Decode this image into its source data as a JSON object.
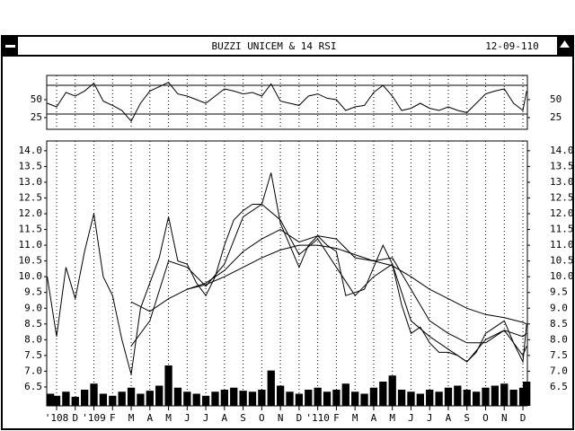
{
  "window": {
    "title": "BUZZI UNICEM & 14 RSI",
    "date": "12-09-110"
  },
  "chart_data": [
    {
      "type": "line",
      "name": "RSI",
      "x": [
        -0.5,
        0,
        0.5,
        1,
        1.5,
        2,
        2.5,
        3,
        3.5,
        4,
        4.5,
        5,
        5.5,
        6,
        6.5,
        7,
        7.5,
        8,
        8.5,
        9,
        9.5,
        10,
        10.5,
        11,
        11.5,
        12,
        12.5,
        13,
        13.5,
        14,
        14.5,
        15,
        15.5,
        16,
        16.5,
        17,
        17.5,
        18,
        18.5,
        19,
        19.5,
        20,
        20.5,
        21,
        21.5,
        22,
        22.5,
        23,
        23.5,
        24,
        24.5,
        25,
        25.2
      ],
      "values": [
        45,
        40,
        60,
        55,
        62,
        73,
        48,
        42,
        35,
        20,
        45,
        62,
        68,
        74,
        58,
        55,
        50,
        45,
        55,
        65,
        62,
        58,
        60,
        55,
        72,
        48,
        45,
        42,
        55,
        58,
        52,
        50,
        35,
        40,
        42,
        60,
        70,
        55,
        35,
        38,
        45,
        38,
        35,
        40,
        35,
        32,
        45,
        58,
        62,
        65,
        45,
        35,
        62
      ],
      "color": "#000000",
      "xlim": [
        -0.53,
        25.24
      ],
      "ylim": [
        8.75,
        83.75
      ],
      "yticks": [
        25,
        50
      ],
      "hlines": [
        30,
        70
      ]
    },
    {
      "type": "line",
      "name": "Price",
      "xlim": [
        -0.53,
        25.24
      ],
      "ylim": [
        5.9,
        14.31
      ],
      "yticks": [
        {
          "value": 6.5,
          "label": "6.5"
        },
        {
          "value": 7,
          "label": "7.0"
        },
        {
          "value": 7.5,
          "label": "7.5"
        },
        {
          "value": 8,
          "label": "8.0"
        },
        {
          "value": 8.5,
          "label": "8.5"
        },
        {
          "value": 9,
          "label": "9.0"
        },
        {
          "value": 9.5,
          "label": "9.5"
        },
        {
          "value": 10,
          "label": "10.0"
        },
        {
          "value": 10.5,
          "label": "10.5"
        },
        {
          "value": 11,
          "label": "11.0"
        },
        {
          "value": 11.5,
          "label": "11.5"
        },
        {
          "value": 12,
          "label": "12.0"
        },
        {
          "value": 12.5,
          "label": "12.5"
        },
        {
          "value": 13,
          "label": "13.0"
        },
        {
          "value": 13.5,
          "label": "13.5"
        },
        {
          "value": 14,
          "label": "14.0"
        }
      ],
      "xticks": [
        {
          "value": 0,
          "label": "'108"
        },
        {
          "value": 1,
          "label": "D"
        },
        {
          "value": 2,
          "label": "'109"
        },
        {
          "value": 3,
          "label": "F"
        },
        {
          "value": 4,
          "label": "M"
        },
        {
          "value": 5,
          "label": "A"
        },
        {
          "value": 6,
          "label": "M"
        },
        {
          "value": 7,
          "label": "J"
        },
        {
          "value": 8,
          "label": "J"
        },
        {
          "value": 9,
          "label": "A"
        },
        {
          "value": 10,
          "label": "S"
        },
        {
          "value": 11,
          "label": "O"
        },
        {
          "value": 12,
          "label": "N"
        },
        {
          "value": 13,
          "label": "D"
        },
        {
          "value": 14,
          "label": "'110"
        },
        {
          "value": 15,
          "label": "F"
        },
        {
          "value": 16,
          "label": "M"
        },
        {
          "value": 17,
          "label": "A"
        },
        {
          "value": 18,
          "label": "M"
        },
        {
          "value": 19,
          "label": "J"
        },
        {
          "value": 20,
          "label": "J"
        },
        {
          "value": 21,
          "label": "A"
        },
        {
          "value": 22,
          "label": "S"
        },
        {
          "value": 23,
          "label": "O"
        },
        {
          "value": 24,
          "label": "N"
        },
        {
          "value": 25,
          "label": "D"
        }
      ],
      "grid": true,
      "series": [
        {
          "color": "#000000",
          "x": [
            -0.5,
            0,
            0.5,
            1,
            1.5,
            2,
            2.5,
            3,
            3.5,
            4,
            4.5,
            5,
            5.5,
            6,
            6.5,
            7,
            7.5,
            8,
            8.5,
            9,
            9.5,
            10,
            10.5,
            11,
            11.5,
            12,
            12.5,
            13,
            13.5,
            14,
            14.5,
            15,
            15.5,
            16,
            16.5,
            17,
            17.5,
            18,
            18.5,
            19,
            19.5,
            20,
            20.5,
            21,
            21.5,
            22,
            22.5,
            23,
            23.5,
            24,
            24.5,
            25,
            25.2
          ],
          "values": [
            10.0,
            8.1,
            10.3,
            9.3,
            10.8,
            12.0,
            10.0,
            9.4,
            8.0,
            6.9,
            9.0,
            9.8,
            10.6,
            11.9,
            10.5,
            10.4,
            9.8,
            9.4,
            10.0,
            11.0,
            11.8,
            12.1,
            12.3,
            12.3,
            13.3,
            11.7,
            11.0,
            10.3,
            11.0,
            11.3,
            11.0,
            10.8,
            9.4,
            9.5,
            9.6,
            10.3,
            11.0,
            10.4,
            9.1,
            8.2,
            8.4,
            7.9,
            7.6,
            7.6,
            7.5,
            7.3,
            7.6,
            8.2,
            8.4,
            8.6,
            7.9,
            7.3,
            8.5
          ],
          "volume": [
            12,
            10,
            14,
            9,
            16,
            22,
            12,
            10,
            14,
            18,
            12,
            15,
            20,
            40,
            18,
            14,
            12,
            10,
            14,
            16,
            18,
            15,
            14,
            16,
            35,
            20,
            14,
            12,
            16,
            18,
            14,
            16,
            22,
            14,
            12,
            18,
            24,
            30,
            16,
            14,
            12,
            16,
            14,
            18,
            20,
            16,
            14,
            18,
            20,
            22,
            16,
            18,
            24
          ]
        },
        {
          "color": "#000000",
          "x": [
            4,
            5,
            6,
            7,
            8,
            9,
            10,
            11,
            12,
            13,
            14,
            15,
            16,
            17,
            18,
            19,
            20,
            21,
            22,
            23,
            24,
            25,
            25.2
          ],
          "values": [
            7.8,
            8.6,
            10.5,
            10.3,
            9.7,
            10.4,
            11.9,
            12.3,
            11.8,
            10.7,
            11.2,
            10.3,
            9.4,
            10.0,
            10.4,
            8.6,
            8.1,
            7.7,
            7.3,
            8.0,
            8.3,
            7.5,
            7.8
          ]
        },
        {
          "color": "#000000",
          "x": [
            4,
            5,
            6,
            7,
            8,
            9,
            10,
            11,
            12,
            13,
            14,
            15,
            16,
            17,
            18,
            19,
            20,
            21,
            22,
            23,
            24,
            25,
            25.2
          ],
          "values": [
            9.2,
            8.9,
            9.3,
            9.6,
            9.8,
            10.2,
            10.8,
            11.2,
            11.5,
            11.1,
            11.3,
            11.2,
            10.6,
            10.5,
            10.6,
            9.6,
            8.6,
            8.2,
            7.9,
            7.9,
            8.3,
            8.1,
            8.2
          ]
        },
        {
          "color": "#000000",
          "x": [
            7,
            8,
            9,
            10,
            11,
            12,
            13,
            14,
            15,
            16,
            17,
            18,
            19,
            20,
            21,
            22,
            23,
            24,
            25,
            25.2
          ],
          "values": [
            9.6,
            9.75,
            10.0,
            10.3,
            10.6,
            10.85,
            11.0,
            11.0,
            10.9,
            10.7,
            10.5,
            10.35,
            10.0,
            9.6,
            9.3,
            9.0,
            8.8,
            8.7,
            8.55,
            8.5
          ]
        }
      ]
    }
  ]
}
